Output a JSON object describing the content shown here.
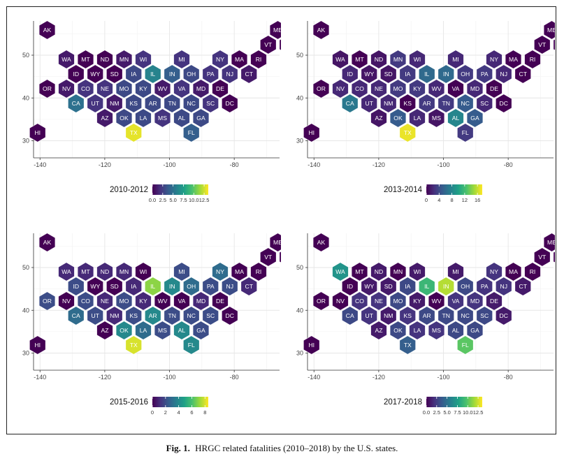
{
  "caption": {
    "label": "Fig. 1.",
    "text": "HRGC related fatalities (2010–2018) by the U.S. states."
  },
  "colors": {
    "grid": "#e6e6e6",
    "axis": "#333333",
    "hex_text": "#ffffff",
    "viridis": [
      "#440154",
      "#46327e",
      "#365c8d",
      "#277f8e",
      "#1fa187",
      "#4ac16d",
      "#a0da39",
      "#fde725"
    ]
  },
  "chart_data": [
    {
      "type": "heatmap",
      "panel": "top-left",
      "title": "2010-2012",
      "x_ticks": [
        "-140",
        "-120",
        "-100",
        "-80"
      ],
      "y_ticks": [
        "30",
        "40",
        "50"
      ],
      "xlim": [
        -142,
        -66
      ],
      "ylim": [
        26,
        58
      ],
      "legend": {
        "ticks": [
          "0.0",
          "2.5",
          "5.0",
          "7.5",
          "10.0",
          "12.5"
        ],
        "tick_values": [
          0,
          2.5,
          5,
          7.5,
          10,
          12.5
        ],
        "min": 0,
        "max": 13.5,
        "placement": "bottom"
      },
      "states": [
        {
          "state": "AK",
          "value": 0
        },
        {
          "state": "ME",
          "value": 0
        },
        {
          "state": "VT",
          "value": 0
        },
        {
          "state": "NH",
          "value": 0
        },
        {
          "state": "WA",
          "value": 1
        },
        {
          "state": "MT",
          "value": 0
        },
        {
          "state": "ND",
          "value": 0
        },
        {
          "state": "MN",
          "value": 1
        },
        {
          "state": "WI",
          "value": 2
        },
        {
          "state": "MI",
          "value": 2
        },
        {
          "state": "NY",
          "value": 2
        },
        {
          "state": "MA",
          "value": 0
        },
        {
          "state": "RI",
          "value": 0
        },
        {
          "state": "ID",
          "value": 0
        },
        {
          "state": "WY",
          "value": 0
        },
        {
          "state": "SD",
          "value": 0
        },
        {
          "state": "IA",
          "value": 3
        },
        {
          "state": "IL",
          "value": 6
        },
        {
          "state": "IN",
          "value": 4
        },
        {
          "state": "OH",
          "value": 3
        },
        {
          "state": "PA",
          "value": 2
        },
        {
          "state": "NJ",
          "value": 2
        },
        {
          "state": "CT",
          "value": 1
        },
        {
          "state": "OR",
          "value": 0
        },
        {
          "state": "NV",
          "value": 1
        },
        {
          "state": "CO",
          "value": 2
        },
        {
          "state": "NE",
          "value": 2
        },
        {
          "state": "MO",
          "value": 3
        },
        {
          "state": "KY",
          "value": 3
        },
        {
          "state": "WV",
          "value": 1
        },
        {
          "state": "VA",
          "value": 2
        },
        {
          "state": "MD",
          "value": 1
        },
        {
          "state": "DE",
          "value": 0
        },
        {
          "state": "CA",
          "value": 5
        },
        {
          "state": "UT",
          "value": 2
        },
        {
          "state": "NM",
          "value": 1
        },
        {
          "state": "KS",
          "value": 3
        },
        {
          "state": "AR",
          "value": 3
        },
        {
          "state": "TN",
          "value": 3
        },
        {
          "state": "NC",
          "value": 3
        },
        {
          "state": "SC",
          "value": 2
        },
        {
          "state": "DC",
          "value": 0
        },
        {
          "state": "AZ",
          "value": 1
        },
        {
          "state": "OK",
          "value": 3
        },
        {
          "state": "LA",
          "value": 3
        },
        {
          "state": "MS",
          "value": 2
        },
        {
          "state": "AL",
          "value": 3
        },
        {
          "state": "GA",
          "value": 3
        },
        {
          "state": "HI",
          "value": 0
        },
        {
          "state": "TX",
          "value": 13
        },
        {
          "state": "FL",
          "value": 4
        }
      ]
    },
    {
      "type": "heatmap",
      "panel": "top-right",
      "title": "2013-2014",
      "x_ticks": [
        "-140",
        "-120",
        "-100",
        "-80"
      ],
      "y_ticks": [
        "30",
        "40",
        "50"
      ],
      "xlim": [
        -142,
        -66
      ],
      "ylim": [
        26,
        58
      ],
      "legend": {
        "ticks": [
          "0",
          "4",
          "8",
          "12",
          "16"
        ],
        "tick_values": [
          0,
          4,
          8,
          12,
          16
        ],
        "min": 0,
        "max": 17.5,
        "placement": "bottom"
      },
      "states": [
        {
          "state": "AK",
          "value": 0
        },
        {
          "state": "ME",
          "value": 0
        },
        {
          "state": "VT",
          "value": 0
        },
        {
          "state": "NH",
          "value": 0
        },
        {
          "state": "WA",
          "value": 1
        },
        {
          "state": "MT",
          "value": 0
        },
        {
          "state": "ND",
          "value": 1
        },
        {
          "state": "MN",
          "value": 3
        },
        {
          "state": "WI",
          "value": 2
        },
        {
          "state": "MI",
          "value": 2
        },
        {
          "state": "NY",
          "value": 2
        },
        {
          "state": "MA",
          "value": 0
        },
        {
          "state": "RI",
          "value": 0
        },
        {
          "state": "ID",
          "value": 2
        },
        {
          "state": "WY",
          "value": 1
        },
        {
          "state": "SD",
          "value": 1
        },
        {
          "state": "IA",
          "value": 3
        },
        {
          "state": "IL",
          "value": 6
        },
        {
          "state": "IN",
          "value": 6
        },
        {
          "state": "OH",
          "value": 3
        },
        {
          "state": "PA",
          "value": 3
        },
        {
          "state": "NJ",
          "value": 2
        },
        {
          "state": "CT",
          "value": 0
        },
        {
          "state": "OR",
          "value": 0
        },
        {
          "state": "NV",
          "value": 2
        },
        {
          "state": "CO",
          "value": 2
        },
        {
          "state": "NE",
          "value": 2
        },
        {
          "state": "MO",
          "value": 3
        },
        {
          "state": "KY",
          "value": 3
        },
        {
          "state": "WV",
          "value": 2
        },
        {
          "state": "VA",
          "value": 0
        },
        {
          "state": "MD",
          "value": 2
        },
        {
          "state": "DE",
          "value": 0
        },
        {
          "state": "CA",
          "value": 7
        },
        {
          "state": "UT",
          "value": 2
        },
        {
          "state": "NM",
          "value": 2
        },
        {
          "state": "KS",
          "value": 0
        },
        {
          "state": "AR",
          "value": 3
        },
        {
          "state": "TN",
          "value": 3
        },
        {
          "state": "NC",
          "value": 5
        },
        {
          "state": "SC",
          "value": 2
        },
        {
          "state": "DC",
          "value": 0
        },
        {
          "state": "AZ",
          "value": 1
        },
        {
          "state": "OK",
          "value": 5
        },
        {
          "state": "LA",
          "value": 2
        },
        {
          "state": "MS",
          "value": 1
        },
        {
          "state": "AL",
          "value": 8
        },
        {
          "state": "GA",
          "value": 5
        },
        {
          "state": "HI",
          "value": 0
        },
        {
          "state": "TX",
          "value": 17
        },
        {
          "state": "FL",
          "value": 3
        }
      ]
    },
    {
      "type": "heatmap",
      "panel": "bottom-left",
      "title": "2015-2016",
      "x_ticks": [
        "-140",
        "-120",
        "-100",
        "-80"
      ],
      "y_ticks": [
        "30",
        "40",
        "50"
      ],
      "xlim": [
        -142,
        -66
      ],
      "ylim": [
        26,
        58
      ],
      "legend": {
        "ticks": [
          "0",
          "2",
          "4",
          "6",
          "8"
        ],
        "tick_values": [
          0,
          2,
          4,
          6,
          8
        ],
        "min": 0,
        "max": 8.5,
        "placement": "bottom"
      },
      "states": [
        {
          "state": "AK",
          "value": 0
        },
        {
          "state": "ME",
          "value": 0
        },
        {
          "state": "VT",
          "value": 0
        },
        {
          "state": "NH",
          "value": 0
        },
        {
          "state": "WA",
          "value": 1
        },
        {
          "state": "MT",
          "value": 1
        },
        {
          "state": "ND",
          "value": 1
        },
        {
          "state": "MN",
          "value": 1
        },
        {
          "state": "WI",
          "value": 0
        },
        {
          "state": "MI",
          "value": 2
        },
        {
          "state": "NY",
          "value": 3
        },
        {
          "state": "MA",
          "value": 0
        },
        {
          "state": "RI",
          "value": 0
        },
        {
          "state": "ID",
          "value": 2
        },
        {
          "state": "WY",
          "value": 0
        },
        {
          "state": "SD",
          "value": 0
        },
        {
          "state": "IA",
          "value": 1
        },
        {
          "state": "IL",
          "value": 7
        },
        {
          "state": "IN",
          "value": 4
        },
        {
          "state": "OH",
          "value": 3
        },
        {
          "state": "PA",
          "value": 2
        },
        {
          "state": "NJ",
          "value": 2
        },
        {
          "state": "CT",
          "value": 1
        },
        {
          "state": "OR",
          "value": 2
        },
        {
          "state": "NV",
          "value": 0
        },
        {
          "state": "CO",
          "value": 2
        },
        {
          "state": "NE",
          "value": 1
        },
        {
          "state": "MO",
          "value": 2
        },
        {
          "state": "KY",
          "value": 1
        },
        {
          "state": "WV",
          "value": 0
        },
        {
          "state": "VA",
          "value": 0
        },
        {
          "state": "MD",
          "value": 1
        },
        {
          "state": "DE",
          "value": 0
        },
        {
          "state": "CA",
          "value": 3
        },
        {
          "state": "UT",
          "value": 2
        },
        {
          "state": "NM",
          "value": 1
        },
        {
          "state": "KS",
          "value": 2
        },
        {
          "state": "AR",
          "value": 4
        },
        {
          "state": "TN",
          "value": 2
        },
        {
          "state": "NC",
          "value": 2
        },
        {
          "state": "SC",
          "value": 2
        },
        {
          "state": "DC",
          "value": 0
        },
        {
          "state": "AZ",
          "value": 0
        },
        {
          "state": "OK",
          "value": 4
        },
        {
          "state": "LA",
          "value": 3
        },
        {
          "state": "MS",
          "value": 2
        },
        {
          "state": "AL",
          "value": 4
        },
        {
          "state": "GA",
          "value": 2
        },
        {
          "state": "HI",
          "value": 0
        },
        {
          "state": "TX",
          "value": 8
        },
        {
          "state": "FL",
          "value": 4
        }
      ]
    },
    {
      "type": "heatmap",
      "panel": "bottom-right",
      "title": "2017-2018",
      "x_ticks": [
        "-140",
        "-120",
        "-100",
        "-80"
      ],
      "y_ticks": [
        "30",
        "40",
        "50"
      ],
      "xlim": [
        -142,
        -66
      ],
      "ylim": [
        26,
        58
      ],
      "legend": {
        "ticks": [
          "0.0",
          "2.5",
          "5.0",
          "7.5",
          "10.0",
          "12.5"
        ],
        "tick_values": [
          0,
          2.5,
          5,
          7.5,
          10,
          12.5
        ],
        "min": 0,
        "max": 13.5,
        "placement": "bottom"
      },
      "states": [
        {
          "state": "AK",
          "value": 0
        },
        {
          "state": "ME",
          "value": 0
        },
        {
          "state": "VT",
          "value": 0
        },
        {
          "state": "NH",
          "value": 0
        },
        {
          "state": "WA",
          "value": 7
        },
        {
          "state": "MT",
          "value": 0
        },
        {
          "state": "ND",
          "value": 1
        },
        {
          "state": "MN",
          "value": 0
        },
        {
          "state": "WI",
          "value": 1
        },
        {
          "state": "MI",
          "value": 1
        },
        {
          "state": "NY",
          "value": 2
        },
        {
          "state": "MA",
          "value": 0
        },
        {
          "state": "RI",
          "value": 0
        },
        {
          "state": "ID",
          "value": 0
        },
        {
          "state": "WY",
          "value": 1
        },
        {
          "state": "SD",
          "value": 1
        },
        {
          "state": "IA",
          "value": 3
        },
        {
          "state": "IL",
          "value": 9
        },
        {
          "state": "IN",
          "value": 12
        },
        {
          "state": "OH",
          "value": 3
        },
        {
          "state": "PA",
          "value": 2
        },
        {
          "state": "NJ",
          "value": 2
        },
        {
          "state": "CT",
          "value": 1
        },
        {
          "state": "OR",
          "value": 0
        },
        {
          "state": "NV",
          "value": 0
        },
        {
          "state": "CO",
          "value": 2
        },
        {
          "state": "NE",
          "value": 2
        },
        {
          "state": "MO",
          "value": 3
        },
        {
          "state": "KY",
          "value": 1
        },
        {
          "state": "WV",
          "value": 0
        },
        {
          "state": "VA",
          "value": 2
        },
        {
          "state": "MD",
          "value": 2
        },
        {
          "state": "DE",
          "value": 1
        },
        {
          "state": "CA",
          "value": 3
        },
        {
          "state": "UT",
          "value": 2
        },
        {
          "state": "NM",
          "value": 1
        },
        {
          "state": "KS",
          "value": 2
        },
        {
          "state": "AR",
          "value": 3
        },
        {
          "state": "TN",
          "value": 3
        },
        {
          "state": "NC",
          "value": 3
        },
        {
          "state": "SC",
          "value": 3
        },
        {
          "state": "DC",
          "value": 1
        },
        {
          "state": "AZ",
          "value": 1
        },
        {
          "state": "OK",
          "value": 3
        },
        {
          "state": "LA",
          "value": 2
        },
        {
          "state": "MS",
          "value": 2
        },
        {
          "state": "AL",
          "value": 3
        },
        {
          "state": "GA",
          "value": 3
        },
        {
          "state": "HI",
          "value": 0
        },
        {
          "state": "TX",
          "value": 4
        },
        {
          "state": "FL",
          "value": 10
        }
      ]
    }
  ]
}
